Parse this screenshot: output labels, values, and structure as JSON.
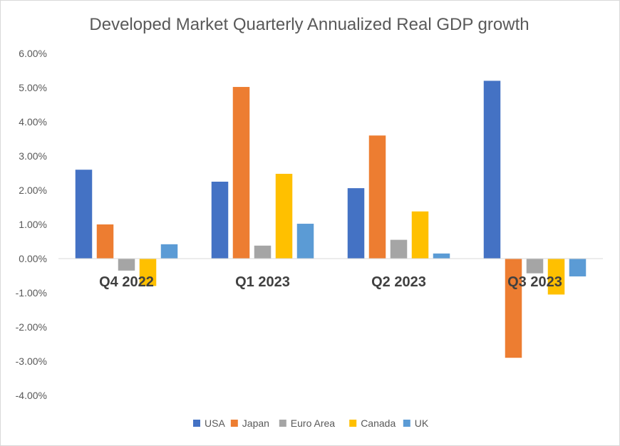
{
  "chart_data": {
    "type": "bar",
    "title": "Developed Market Quarterly Annualized Real GDP growth",
    "categories": [
      "Q4 2022",
      "Q1 2023",
      "Q2 2023",
      "Q3 2023"
    ],
    "series": [
      {
        "name": "USA",
        "color": "#4472c4",
        "values": [
          2.6,
          2.25,
          2.06,
          5.2
        ]
      },
      {
        "name": "Japan",
        "color": "#ed7d31",
        "values": [
          1.0,
          5.02,
          3.6,
          -2.9
        ]
      },
      {
        "name": "Euro Area",
        "color": "#a5a5a5",
        "values": [
          -0.35,
          0.38,
          0.55,
          -0.43
        ]
      },
      {
        "name": "Canada",
        "color": "#ffc000",
        "values": [
          -0.8,
          2.48,
          1.38,
          -1.05
        ]
      },
      {
        "name": "UK",
        "color": "#5b9bd5",
        "values": [
          0.42,
          1.02,
          0.15,
          -0.52
        ]
      }
    ],
    "ylim": [
      -4,
      6
    ],
    "yticks": [
      "-4.00%",
      "-3.00%",
      "-2.00%",
      "-1.00%",
      "0.00%",
      "1.00%",
      "2.00%",
      "3.00%",
      "4.00%",
      "5.00%",
      "6.00%"
    ],
    "legend_position": "bottom",
    "grid": false
  }
}
